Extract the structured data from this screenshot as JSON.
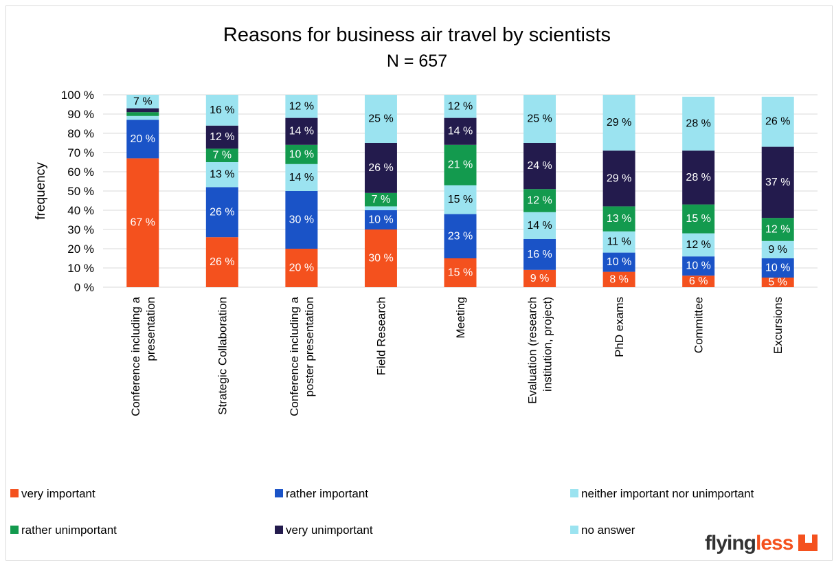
{
  "chart_data": {
    "type": "bar",
    "stacked": true,
    "title": "Reasons for business air travel by scientists",
    "subtitle": "N = 657",
    "ylabel": "frequency",
    "xlabel": "",
    "ylim": [
      0,
      100
    ],
    "yticks": [
      "0 %",
      "10 %",
      "20 %",
      "30 %",
      "40 %",
      "50 %",
      "60 %",
      "70 %",
      "80 %",
      "90 %",
      "100 %"
    ],
    "grid": true,
    "legend_position": "bottom",
    "categories": [
      [
        "Conference including a",
        "presentation"
      ],
      [
        "Strategic Collaboration"
      ],
      [
        "Conference including a",
        "poster presentation"
      ],
      [
        "Field Research"
      ],
      [
        "Meeting"
      ],
      [
        "Evaluation (research",
        "institution, project)"
      ],
      [
        "PhD exams"
      ],
      [
        "Committee"
      ],
      [
        "Excursions"
      ]
    ],
    "series": [
      {
        "name": "very important",
        "color": "#f4511e",
        "values": [
          67,
          26,
          20,
          30,
          15,
          9,
          8,
          6,
          5
        ],
        "labels": [
          "67 %",
          "26 %",
          "20 %",
          "30 %",
          "15 %",
          "9 %",
          "8 %",
          "6 %",
          "5 %"
        ],
        "label_color": "#ffffff"
      },
      {
        "name": "rather important",
        "color": "#1a53c7",
        "values": [
          20,
          26,
          30,
          10,
          23,
          16,
          10,
          10,
          10
        ],
        "labels": [
          "20 %",
          "26 %",
          "30 %",
          "10 %",
          "23 %",
          "16 %",
          "10 %",
          "10 %",
          "10 %"
        ],
        "label_color": "#ffffff"
      },
      {
        "name": "neither important nor unimportant",
        "color": "#9be3f0",
        "values": [
          2,
          13,
          14,
          2,
          15,
          14,
          11,
          12,
          9
        ],
        "labels": [
          "",
          "13 %",
          "14 %",
          "",
          "15 %",
          "14 %",
          "11 %",
          "12 %",
          "9 %"
        ],
        "label_color": "#000000"
      },
      {
        "name": "rather unimportant",
        "color": "#139a4e",
        "values": [
          2,
          7,
          10,
          7,
          21,
          12,
          13,
          15,
          12
        ],
        "labels": [
          "",
          "7 %",
          "10 %",
          "7 %",
          "21 %",
          "12 %",
          "13 %",
          "15 %",
          "12 %"
        ],
        "label_color": "#ffffff"
      },
      {
        "name": "very unimportant",
        "color": "#231b4d",
        "values": [
          2,
          12,
          14,
          26,
          14,
          24,
          29,
          28,
          37
        ],
        "labels": [
          "",
          "12 %",
          "14 %",
          "26 %",
          "14 %",
          "24 %",
          "29 %",
          "28 %",
          "37 %"
        ],
        "label_color": "#ffffff"
      },
      {
        "name": "no answer",
        "color": "#9be3f0",
        "values": [
          7,
          16,
          12,
          25,
          12,
          25,
          29,
          28,
          26
        ],
        "labels": [
          "7 %",
          "16 %",
          "12 %",
          "25 %",
          "12 %",
          "25 %",
          "29 %",
          "28 %",
          "26 %"
        ],
        "label_color": "#000000"
      }
    ]
  },
  "logo": {
    "text_main": "flying",
    "text_accent": "less",
    "accent_color": "#f4511e"
  }
}
